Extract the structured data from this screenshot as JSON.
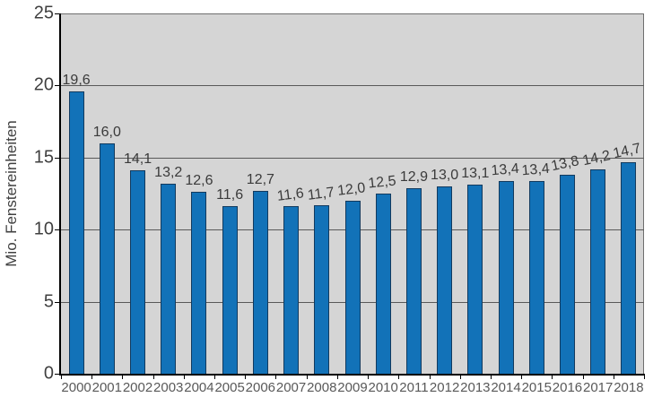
{
  "chart_data": {
    "type": "bar",
    "title": "",
    "xlabel": "",
    "ylabel": "Mio. Fenstereinheiten",
    "categories": [
      "2000",
      "2001",
      "2002",
      "2003",
      "2004",
      "2005",
      "2006",
      "2007",
      "2008",
      "2009",
      "2010",
      "2011",
      "2012",
      "2013",
      "2014",
      "2015",
      "2016",
      "2017",
      "2018"
    ],
    "values": [
      19.6,
      16.0,
      14.1,
      13.2,
      12.6,
      11.6,
      12.7,
      11.6,
      11.7,
      12.0,
      12.5,
      12.9,
      13.0,
      13.1,
      13.4,
      13.4,
      13.8,
      14.2,
      14.7
    ],
    "value_labels": [
      "19,6",
      "16,0",
      "14,1",
      "13,2",
      "12,6",
      "11,6",
      "12,7",
      "11,6",
      "11,7",
      "12,0",
      "12,5",
      "12,9",
      "13,0",
      "13,1",
      "13,4",
      "13,4",
      "13,8",
      "14,2",
      "14,7"
    ],
    "ylim": [
      0,
      25
    ],
    "yticks": [
      0,
      5,
      10,
      15,
      20,
      25
    ],
    "ytick_labels": [
      "0",
      "5",
      "10",
      "15",
      "20",
      "25"
    ],
    "grid": true,
    "legend": false,
    "label_tilts_deg": [
      0,
      0,
      0,
      0,
      0,
      0,
      0,
      -7,
      -7,
      -7,
      -6,
      0,
      0,
      0,
      -5,
      -5,
      -12,
      -12,
      -12
    ],
    "colors": {
      "bar_fill": "#1272B8",
      "bar_border": "#123A5E",
      "plot_background": "#D5D5D5",
      "gridline": "#595959",
      "axis": "#000000",
      "plot_border": "#6E6E6E",
      "value_label": "#3A3A3A",
      "x_tick_label": "#595959",
      "y_tick_label": "#3F3F3F",
      "y_axis_title": "#404040"
    }
  }
}
